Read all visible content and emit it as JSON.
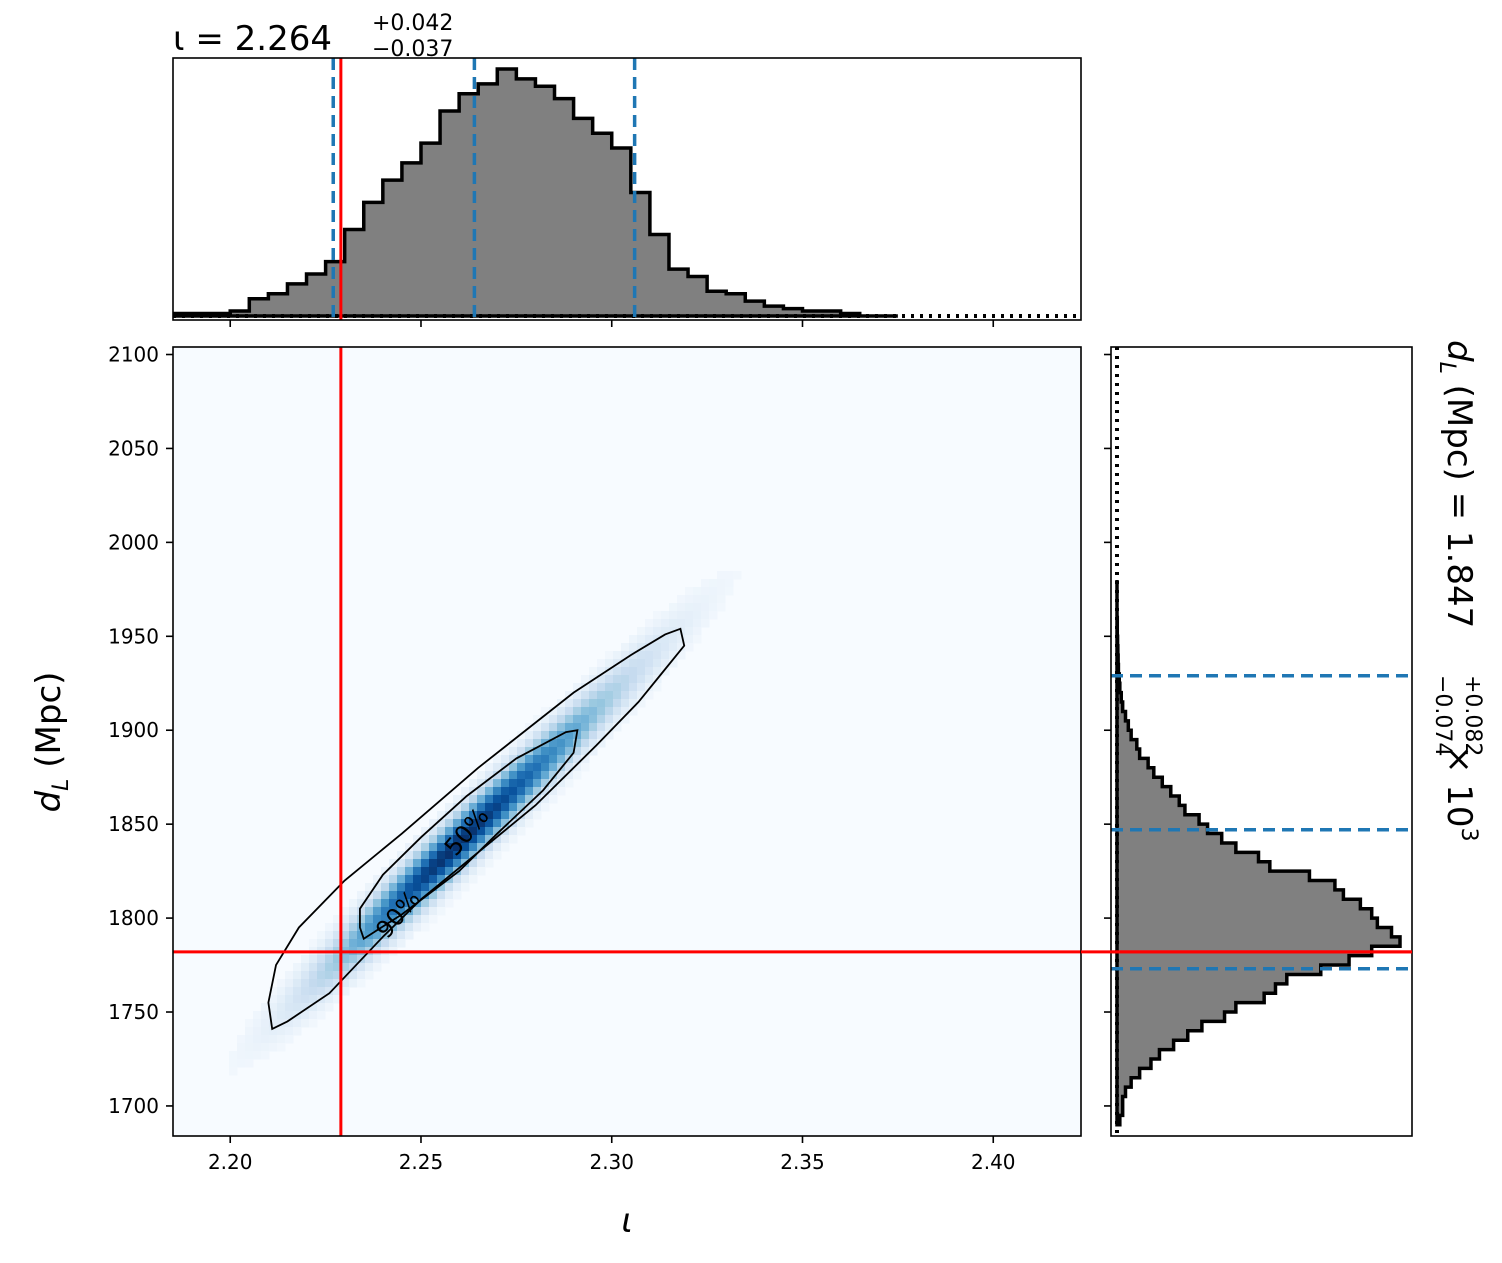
{
  "chart_data": [
    {
      "panel": "top-marginal",
      "type": "histogram",
      "title": {
        "symbol": "ι",
        "median": "2.264",
        "plus": "+0.042",
        "minus": "−0.037"
      },
      "title_text": "ι = 2.264+0.042−0.037",
      "xlim": [
        2.185,
        2.423
      ],
      "x_ticks": [
        2.2,
        2.25,
        2.3,
        2.35,
        2.4
      ],
      "bin_width": 0.005,
      "bins_start": 2.185,
      "counts": [
        0.01,
        0.01,
        0.01,
        0.02,
        0.07,
        0.09,
        0.13,
        0.17,
        0.22,
        0.35,
        0.46,
        0.55,
        0.62,
        0.7,
        0.83,
        0.9,
        0.94,
        1.0,
        0.96,
        0.93,
        0.88,
        0.8,
        0.74,
        0.68,
        0.5,
        0.33,
        0.19,
        0.16,
        0.1,
        0.09,
        0.06,
        0.04,
        0.03,
        0.02,
        0.02,
        0.01,
        0.0,
        0.0
      ],
      "quantile_lines": [
        2.227,
        2.264,
        2.306
      ],
      "truth_value": 2.229,
      "truth_color": "#ff0000",
      "quantile_color": "#1f77b4",
      "fill_color": "#808080"
    },
    {
      "panel": "joint",
      "type": "heatmap",
      "xlabel": "ι",
      "ylabel": "d_L (Mpc)",
      "xlim": [
        2.185,
        2.423
      ],
      "ylim": [
        1684,
        2104
      ],
      "x_ticks": [
        2.2,
        2.25,
        2.3,
        2.35,
        2.4
      ],
      "x_tick_labels": [
        "2.20",
        "2.25",
        "2.30",
        "2.35",
        "2.40"
      ],
      "y_ticks": [
        1700,
        1750,
        1800,
        1850,
        1900,
        1950,
        2000,
        2050,
        2100
      ],
      "y_tick_labels": [
        "1700",
        "1750",
        "1800",
        "1850",
        "1900",
        "1950",
        "2000",
        "2050",
        "2100"
      ],
      "colormap": "Blues",
      "density_axis": {
        "start": [
          2.205,
          1710
        ],
        "end": [
          2.33,
          1960
        ],
        "peak": [
          2.259,
          1838
        ]
      },
      "truth": {
        "x": 2.229,
        "y": 1782
      },
      "contours": [
        {
          "level": "90%",
          "points": [
            [
              2.211,
              1741
            ],
            [
              2.215,
              1745
            ],
            [
              2.226,
              1760
            ],
            [
              2.24,
              1790
            ],
            [
              2.25,
              1810
            ],
            [
              2.265,
              1835
            ],
            [
              2.28,
              1860
            ],
            [
              2.296,
              1892
            ],
            [
              2.307,
              1915
            ],
            [
              2.313,
              1930
            ],
            [
              2.319,
              1945
            ],
            [
              2.318,
              1954
            ],
            [
              2.314,
              1951
            ],
            [
              2.305,
              1940
            ],
            [
              2.29,
              1920
            ],
            [
              2.265,
              1880
            ],
            [
              2.245,
              1845
            ],
            [
              2.23,
              1820
            ],
            [
              2.218,
              1795
            ],
            [
              2.212,
              1775
            ],
            [
              2.21,
              1755
            ],
            [
              2.211,
              1741
            ]
          ]
        },
        {
          "level": "50%",
          "points": [
            [
              2.235,
              1789
            ],
            [
              2.245,
              1802
            ],
            [
              2.26,
              1825
            ],
            [
              2.27,
              1845
            ],
            [
              2.282,
              1868
            ],
            [
              2.29,
              1888
            ],
            [
              2.291,
              1900
            ],
            [
              2.288,
              1899
            ],
            [
              2.275,
              1885
            ],
            [
              2.262,
              1865
            ],
            [
              2.25,
              1843
            ],
            [
              2.24,
              1823
            ],
            [
              2.234,
              1805
            ],
            [
              2.234,
              1795
            ],
            [
              2.235,
              1789
            ]
          ]
        }
      ],
      "contour_labels": [
        {
          "text": "90%",
          "x": 2.244,
          "y": 1802,
          "angle": -50
        },
        {
          "text": "50%",
          "x": 2.262,
          "y": 1846,
          "angle": -50
        }
      ],
      "contour_label_texts": [
        "90%",
        "50%"
      ]
    },
    {
      "panel": "right-marginal",
      "type": "histogram",
      "orientation": "horizontal",
      "title": {
        "prefix": "d",
        "subscript": "L",
        "unit": " (Mpc) = 1.847",
        "plus": "+0.082",
        "minus": "−0.074",
        "scale": " × 10",
        "exponent": "3"
      },
      "title_text": "d_L (Mpc) = 1.847+0.082−0.074 × 10^3",
      "ylim": [
        1684,
        2104
      ],
      "bin_width": 5,
      "bins_start": 1690,
      "counts": [
        0.01,
        0.02,
        0.02,
        0.03,
        0.05,
        0.08,
        0.12,
        0.15,
        0.2,
        0.25,
        0.3,
        0.38,
        0.42,
        0.52,
        0.56,
        0.6,
        0.72,
        0.82,
        0.9,
        1.0,
        0.97,
        0.92,
        0.9,
        0.86,
        0.8,
        0.77,
        0.68,
        0.54,
        0.5,
        0.42,
        0.37,
        0.32,
        0.29,
        0.24,
        0.22,
        0.19,
        0.16,
        0.13,
        0.11,
        0.08,
        0.07,
        0.05,
        0.04,
        0.03,
        0.02,
        0.015,
        0.01,
        0.008,
        0.005,
        0.004,
        0.003,
        0.002,
        0.001,
        0.001,
        0.0,
        0.0,
        0.0,
        0.0
      ],
      "quantile_lines": [
        1773,
        1847,
        1929
      ],
      "truth_value": 1782,
      "truth_color": "#ff0000",
      "quantile_color": "#1f77b4",
      "fill_color": "#808080"
    }
  ]
}
